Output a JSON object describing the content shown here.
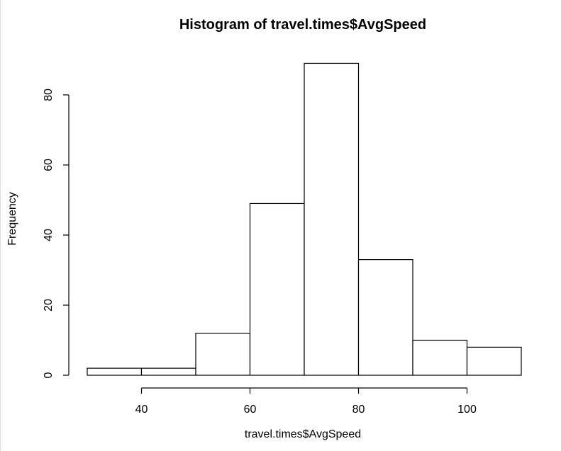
{
  "chart_data": {
    "type": "bar",
    "title": "Histogram of travel.times$AvgSpeed",
    "xlabel": "travel.times$AvgSpeed",
    "ylabel": "Frequency",
    "bins": [
      {
        "from": 30,
        "to": 40,
        "count": 2
      },
      {
        "from": 40,
        "to": 50,
        "count": 2
      },
      {
        "from": 50,
        "to": 60,
        "count": 12
      },
      {
        "from": 60,
        "to": 70,
        "count": 49
      },
      {
        "from": 70,
        "to": 80,
        "count": 89
      },
      {
        "from": 80,
        "to": 90,
        "count": 33
      },
      {
        "from": 90,
        "to": 100,
        "count": 10
      },
      {
        "from": 100,
        "to": 110,
        "count": 8
      }
    ],
    "xlim": [
      30,
      110
    ],
    "ylim": [
      0,
      89
    ],
    "x_ticks": [
      40,
      60,
      80,
      100
    ],
    "y_ticks": [
      0,
      20,
      40,
      60,
      80
    ],
    "grid": false
  }
}
